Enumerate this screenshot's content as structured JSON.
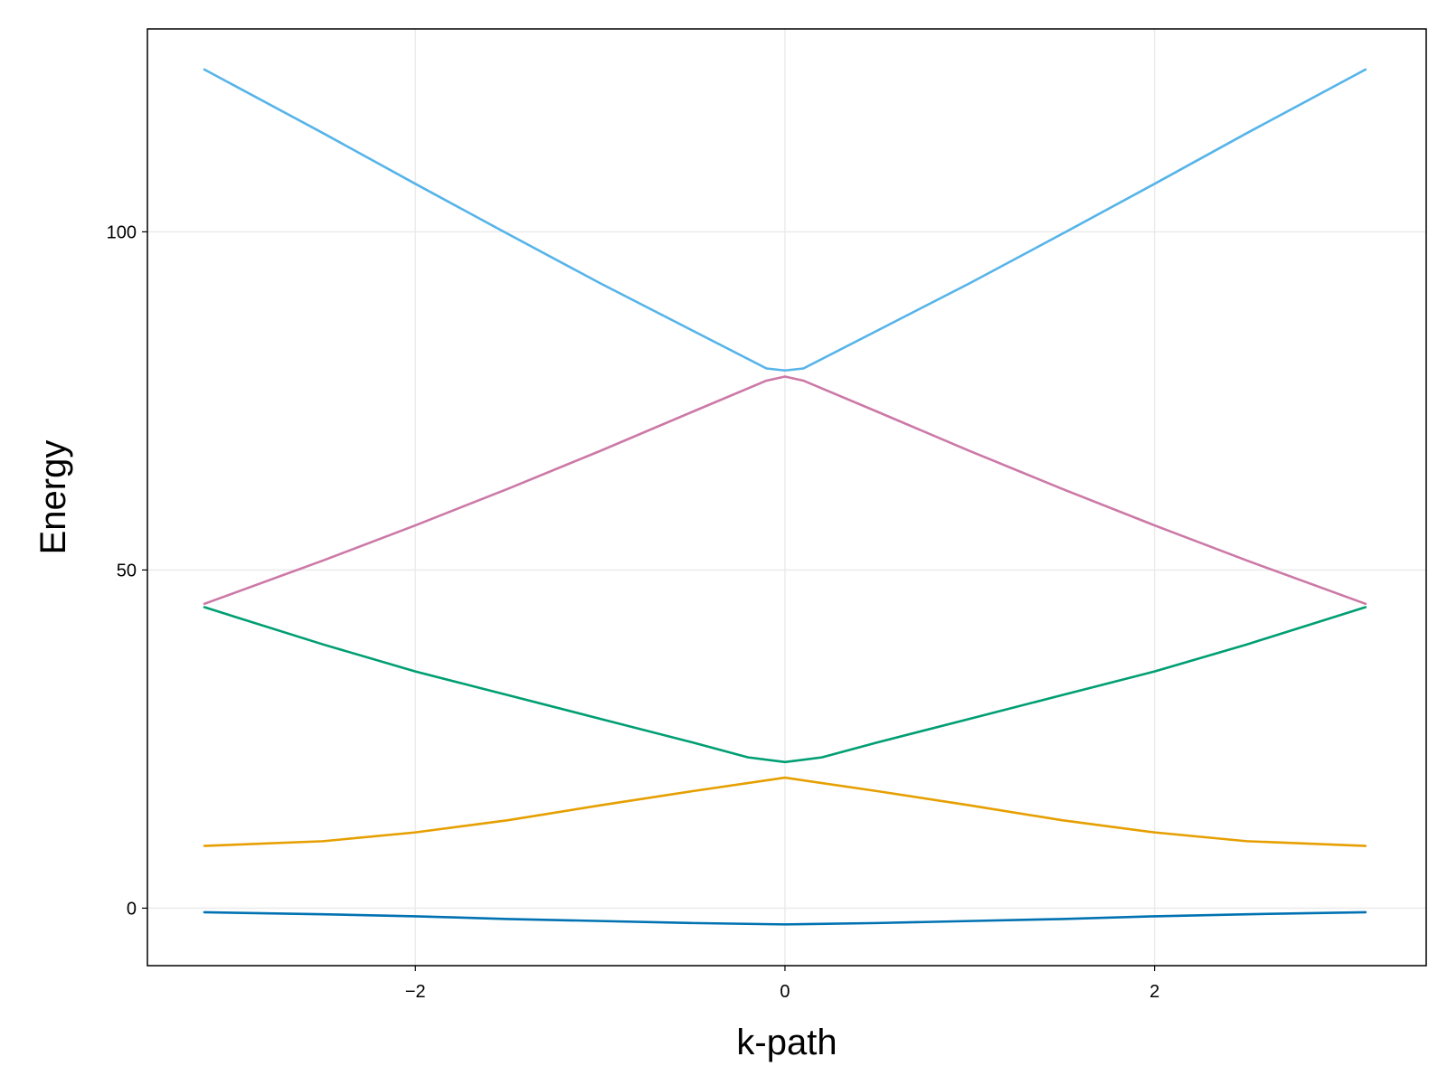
{
  "chart_data": {
    "type": "line",
    "xlabel": "k-path",
    "ylabel": "Energy",
    "xlim": [
      -3.45,
      3.47
    ],
    "ylim": [
      -8.5,
      130
    ],
    "x_ticks": [
      -2,
      0,
      2
    ],
    "y_ticks": [
      0,
      50,
      100
    ],
    "x_tick_labels": [
      "−2",
      "0",
      "2"
    ],
    "y_tick_labels": [
      "0",
      "50",
      "100"
    ],
    "grid": true,
    "legend": "none",
    "series": [
      {
        "color": "#0072b2",
        "x": [
          -3.1416,
          -2.5,
          -2.0,
          -1.5,
          -1.0,
          -0.5,
          0.0,
          0.5,
          1.0,
          1.5,
          2.0,
          2.5,
          3.1416
        ],
        "y": [
          -0.6,
          -0.9,
          -1.2,
          -1.6,
          -1.9,
          -2.2,
          -2.4,
          -2.2,
          -1.9,
          -1.6,
          -1.2,
          -0.9,
          -0.6
        ]
      },
      {
        "color": "#e69f00",
        "x": [
          -3.1416,
          -2.5,
          -2.0,
          -1.5,
          -1.0,
          -0.5,
          0.0,
          0.5,
          1.0,
          1.5,
          2.0,
          2.5,
          3.1416
        ],
        "y": [
          9.2,
          9.9,
          11.2,
          13.0,
          15.2,
          17.3,
          19.3,
          17.3,
          15.2,
          13.0,
          11.2,
          9.9,
          9.2
        ]
      },
      {
        "color": "#009e73",
        "x": [
          -3.1416,
          -2.5,
          -2.0,
          -1.5,
          -1.0,
          -0.5,
          -0.2,
          0.0,
          0.2,
          0.5,
          1.0,
          1.5,
          2.0,
          2.5,
          3.1416
        ],
        "y": [
          44.5,
          39.0,
          35.0,
          31.5,
          28.0,
          24.5,
          22.3,
          21.6,
          22.3,
          24.5,
          28.0,
          31.5,
          35.0,
          39.0,
          44.5
        ]
      },
      {
        "color": "#cc79a7",
        "x": [
          -3.1416,
          -2.5,
          -2.0,
          -1.5,
          -1.0,
          -0.5,
          -0.1,
          0.0,
          0.1,
          0.5,
          1.0,
          1.5,
          2.0,
          2.5,
          3.1416
        ],
        "y": [
          45.0,
          51.4,
          56.6,
          62.0,
          67.6,
          73.4,
          78.0,
          78.6,
          78.0,
          73.4,
          67.6,
          62.0,
          56.6,
          51.4,
          45.0
        ]
      },
      {
        "color": "#56b4e9",
        "x": [
          -3.1416,
          -2.5,
          -2.0,
          -1.5,
          -1.0,
          -0.5,
          -0.1,
          0.0,
          0.1,
          0.5,
          1.0,
          1.5,
          2.0,
          2.5,
          3.1416
        ],
        "y": [
          124.0,
          114.6,
          107.1,
          99.7,
          92.4,
          85.4,
          79.8,
          79.5,
          79.8,
          85.4,
          92.4,
          99.7,
          107.1,
          114.6,
          124.0
        ]
      }
    ]
  }
}
